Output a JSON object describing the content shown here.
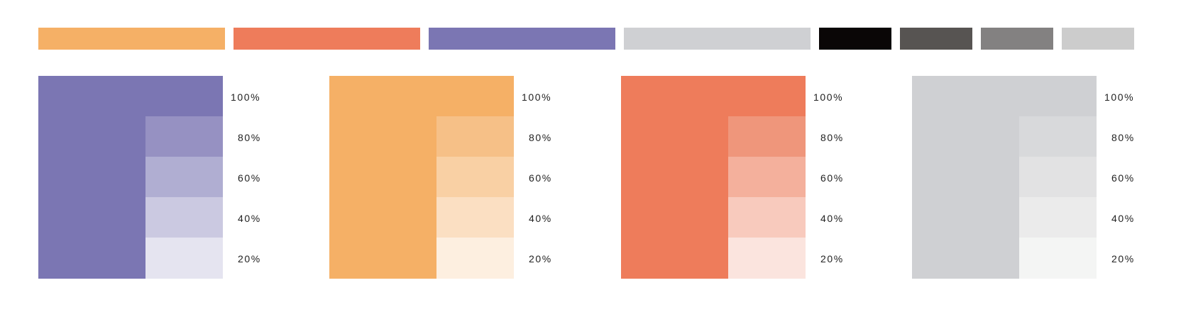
{
  "strip": [
    {
      "name": "orange",
      "color": "#F5B066"
    },
    {
      "name": "coral",
      "color": "#EE7C5B"
    },
    {
      "name": "purple",
      "color": "#7B76B3"
    },
    {
      "name": "light-gray",
      "color": "#CFD0D3"
    },
    {
      "name": "black",
      "color": "#0A0606"
    },
    {
      "name": "dark-gray",
      "color": "#575452"
    },
    {
      "name": "mid-gray",
      "color": "#838181"
    },
    {
      "name": "pale-gray",
      "color": "#CCCCCC"
    }
  ],
  "palettes": [
    {
      "name": "purple",
      "base": "#7B76B3",
      "steps": [
        {
          "label": "100%",
          "color": "#7B76B3"
        },
        {
          "label": "80%",
          "color": "#9691C2"
        },
        {
          "label": "60%",
          "color": "#B0AED2"
        },
        {
          "label": "40%",
          "color": "#CBC9E1"
        },
        {
          "label": "20%",
          "color": "#E5E4F0"
        }
      ]
    },
    {
      "name": "orange",
      "base": "#F5B066",
      "steps": [
        {
          "label": "100%",
          "color": "#F5B066"
        },
        {
          "label": "80%",
          "color": "#F6C087"
        },
        {
          "label": "60%",
          "color": "#F9D0A4"
        },
        {
          "label": "40%",
          "color": "#FBDFC2"
        },
        {
          "label": "20%",
          "color": "#FDEFE0"
        }
      ]
    },
    {
      "name": "coral",
      "base": "#EE7C5B",
      "steps": [
        {
          "label": "100%",
          "color": "#EE7C5B"
        },
        {
          "label": "80%",
          "color": "#EF967B"
        },
        {
          "label": "60%",
          "color": "#F4B09C"
        },
        {
          "label": "40%",
          "color": "#F8CABD"
        },
        {
          "label": "20%",
          "color": "#FBE4DE"
        }
      ]
    },
    {
      "name": "gray",
      "base": "#CFD0D3",
      "steps": [
        {
          "label": "100%",
          "color": "#CFD0D3"
        },
        {
          "label": "80%",
          "color": "#D8D9DB"
        },
        {
          "label": "60%",
          "color": "#E2E2E3"
        },
        {
          "label": "40%",
          "color": "#EBEBEB"
        },
        {
          "label": "20%",
          "color": "#F4F5F4"
        }
      ]
    }
  ]
}
